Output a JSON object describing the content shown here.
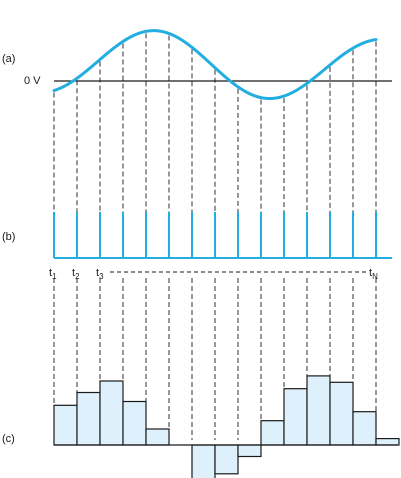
{
  "panel_labels": {
    "a": "(a)",
    "b": "(b)",
    "c": "(c)"
  },
  "zero_label": "0 V",
  "time_labels": {
    "t1": {
      "base": "t",
      "sub": "1"
    },
    "t2": {
      "base": "t",
      "sub": "2"
    },
    "t3": {
      "base": "t",
      "sub": "3"
    },
    "tN": {
      "base": "t",
      "sub": "N"
    }
  },
  "colors": {
    "signal": "#22aee0",
    "pulse": "#22aee0",
    "bar_fill": "#ddf0fb",
    "bar_stroke": "#1a1a1a",
    "guide": "#1a1a1a",
    "axis": "#1a1a1a"
  },
  "sample_count": 15,
  "samples": [
    0.62,
    0.82,
    1.0,
    0.68,
    0.25,
    0.0,
    -0.55,
    -0.45,
    -0.18,
    0.38,
    0.88,
    1.08,
    0.98,
    0.52,
    0.1
  ]
}
